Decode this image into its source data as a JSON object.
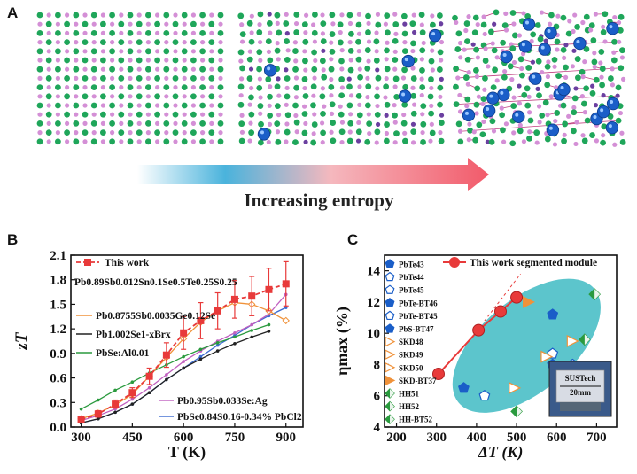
{
  "panels": {
    "a": {
      "label": "A",
      "arrow_text": "Increasing entropy"
    },
    "b": {
      "label": "B"
    },
    "c": {
      "label": "C"
    }
  },
  "colors": {
    "atom_green": "#1fa65a",
    "atom_pink": "#d48fd6",
    "atom_blue": "#1a5ec8",
    "atom_purple": "#6b3fa0",
    "arrow_start": "#4ab3dc",
    "arrow_end": "#f25a6a",
    "ellipse": "#5cc5cc",
    "main_red": "#e83a3a"
  },
  "chart_data": [
    {
      "type": "line",
      "panel": "B",
      "xlabel": "T (K)",
      "ylabel": "zT",
      "xlim": [
        270,
        950
      ],
      "ylim": [
        0,
        2.1
      ],
      "xticks": [
        "300",
        "450",
        "600",
        "750",
        "900"
      ],
      "xtick_values": [
        300,
        450,
        600,
        750,
        900
      ],
      "yticks": [
        "0.0",
        "0.3",
        "0.6",
        "0.9",
        "1.2",
        "1.5",
        "1.8",
        "2.1"
      ],
      "ytick_values": [
        0,
        0.3,
        0.6,
        0.9,
        1.2,
        1.5,
        1.8,
        2.1
      ],
      "legend": {
        "this_work": "This work",
        "composition": "Pb0.89Sb0.012Sn0.1Se0.5Te0.25S0.25"
      },
      "series": [
        {
          "name": "This work",
          "color": "#e83a3a",
          "marker": "square",
          "x": [
            300,
            350,
            400,
            450,
            500,
            550,
            600,
            650,
            700,
            750,
            800,
            850,
            900
          ],
          "y": [
            0.09,
            0.16,
            0.28,
            0.42,
            0.62,
            0.88,
            1.15,
            1.3,
            1.42,
            1.56,
            1.6,
            1.68,
            1.75
          ],
          "err": [
            0.03,
            0.04,
            0.05,
            0.06,
            0.1,
            0.15,
            0.2,
            0.22,
            0.22,
            0.23,
            0.24,
            0.26,
            0.27
          ]
        },
        {
          "name": "Pb0.8755Sb0.0035Ge0.12Se",
          "color": "#f0923a",
          "marker": "diamond",
          "x": [
            300,
            350,
            400,
            450,
            500,
            550,
            600,
            650,
            700,
            750,
            800,
            850,
            900
          ],
          "y": [
            0.1,
            0.17,
            0.27,
            0.4,
            0.62,
            0.85,
            1.08,
            1.28,
            1.42,
            1.52,
            1.5,
            1.42,
            1.3
          ]
        },
        {
          "name": "Pb1.002Se1-xBrx",
          "color": "#222222",
          "marker": "circle",
          "x": [
            300,
            350,
            400,
            450,
            500,
            550,
            600,
            650,
            700,
            750,
            800,
            850
          ],
          "y": [
            0.05,
            0.1,
            0.18,
            0.28,
            0.42,
            0.58,
            0.72,
            0.83,
            0.93,
            1.02,
            1.1,
            1.17
          ]
        },
        {
          "name": "PbSe:Al0.01",
          "color": "#2a9a3e",
          "marker": "circle",
          "x": [
            300,
            350,
            400,
            450,
            500,
            550,
            600,
            650,
            700,
            750,
            800,
            850
          ],
          "y": [
            0.22,
            0.33,
            0.45,
            0.55,
            0.66,
            0.76,
            0.86,
            0.95,
            1.03,
            1.1,
            1.18,
            1.25
          ]
        },
        {
          "name": "Pb0.95Sb0.033Se:Ag",
          "color": "#c060c0",
          "marker": "circle",
          "x": [
            300,
            350,
            400,
            450,
            500,
            550,
            600,
            650,
            700,
            750,
            800,
            850,
            900
          ],
          "y": [
            0.08,
            0.14,
            0.22,
            0.34,
            0.48,
            0.64,
            0.8,
            0.93,
            1.05,
            1.15,
            1.25,
            1.38,
            1.62
          ]
        },
        {
          "name": "PbSe0.84S0.16-0.34% PbCl2",
          "color": "#3a6ad0",
          "marker": "circle",
          "x": [
            300,
            350,
            400,
            450,
            500,
            550,
            600,
            650,
            700,
            750,
            800,
            850,
            900
          ],
          "y": [
            0.05,
            0.1,
            0.18,
            0.28,
            0.42,
            0.58,
            0.72,
            0.86,
            1.0,
            1.12,
            1.25,
            1.36,
            1.46
          ]
        }
      ],
      "series_labels": [
        "This work",
        "Pb0.89Sb0.012Sn0.1Se0.5Te0.25S0.25",
        "Pb0.8755Sb0.0035Ge0.12Se",
        "Pb1.002Se1-xBrx",
        "PbSe:Al0.01",
        "Pb0.95Sb0.033Se:Ag",
        "PbSe0.84S0.16-0.34% PbCl2"
      ]
    },
    {
      "type": "scatter",
      "panel": "C",
      "xlabel": "ΔT (K)",
      "ylabel": "ηmax (%)",
      "xlim": [
        170,
        750
      ],
      "ylim": [
        4,
        15
      ],
      "xticks": [
        "200",
        "300",
        "400",
        "500",
        "600",
        "700"
      ],
      "xtick_values": [
        200,
        300,
        400,
        500,
        600,
        700
      ],
      "yticks": [
        "4",
        "6",
        "8",
        "10",
        "12",
        "14"
      ],
      "ytick_values": [
        4,
        6,
        8,
        10,
        12,
        14
      ],
      "this_work": {
        "name": "This work segmented module",
        "color": "#e83a3a",
        "x": [
          305,
          405,
          460,
          500
        ],
        "y": [
          7.4,
          10.2,
          11.4,
          12.3
        ]
      },
      "inset": {
        "label": "SUSTech",
        "scale": "20mm"
      },
      "points": [
        {
          "name": "PbTe43",
          "x": 368,
          "y": 6.5,
          "shape": "pentagon",
          "fill": "#1a5ec8",
          "open": false
        },
        {
          "name": "PbTe44",
          "x": 420,
          "y": 6.0,
          "shape": "pentagon",
          "fill": "#1a5ec8",
          "open": true
        },
        {
          "name": "PbTe45",
          "x": 590,
          "y": 8.7,
          "shape": "pentagon",
          "fill": "#1a5ec8",
          "open": true
        },
        {
          "name": "PbTe-BT46",
          "x": 590,
          "y": 11.2,
          "shape": "pentagon",
          "fill": "#1a5ec8",
          "open": false
        },
        {
          "name": "PbTe-BT45",
          "x": 640,
          "y": 8.0,
          "shape": "pentagon",
          "fill": "#1a5ec8",
          "open": true
        },
        {
          "name": "PbS-BT47",
          "x": 590,
          "y": 8.0,
          "shape": "pentagon",
          "fill": "#1a5ec8",
          "open": false
        },
        {
          "name": "SKD48",
          "x": 495,
          "y": 6.5,
          "shape": "triangle",
          "fill": "#f0923a",
          "open": true
        },
        {
          "name": "SKD49",
          "x": 640,
          "y": 9.5,
          "shape": "triangle",
          "fill": "#f0923a",
          "open": true
        },
        {
          "name": "SKD50",
          "x": 575,
          "y": 8.5,
          "shape": "triangle",
          "fill": "#f0923a",
          "open": true
        },
        {
          "name": "SKD-BT37",
          "x": 530,
          "y": 12.0,
          "shape": "triangle",
          "fill": "#f0923a",
          "open": false
        },
        {
          "name": "HH51",
          "x": 695,
          "y": 12.5,
          "shape": "diamond",
          "fill": "#2a9a3e",
          "open": false
        },
        {
          "name": "HH52",
          "x": 500,
          "y": 5.0,
          "shape": "diamond",
          "fill": "#2a9a3e",
          "open": false
        },
        {
          "name": "HH-BT52",
          "x": 670,
          "y": 9.6,
          "shape": "diamond",
          "fill": "#2a9a3e",
          "open": false
        }
      ],
      "legend_labels": [
        "PbTe43",
        "PbTe44",
        "PbTe45",
        "PbTe-BT46",
        "PbTe-BT45",
        "PbS-BT47",
        "SKD48",
        "SKD49",
        "SKD50",
        "SKD-BT37",
        "HH51",
        "HH52",
        "HH-BT52"
      ]
    }
  ]
}
